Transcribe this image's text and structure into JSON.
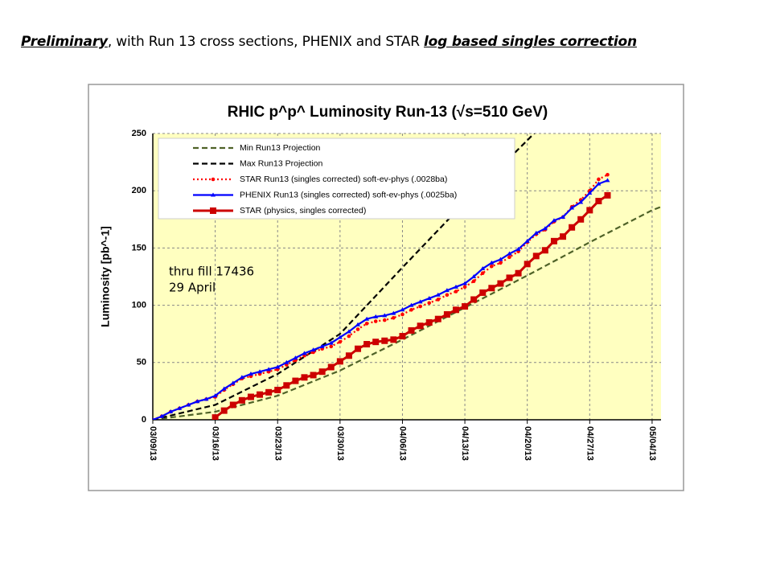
{
  "slide_title": [
    {
      "text": "Preliminary",
      "style": "emph"
    },
    {
      "text": ", with Run 13 cross sections, PHENIX and STAR ",
      "style": "plain"
    },
    {
      "text": "log based singles correction",
      "style": "emph"
    }
  ],
  "chart_data": {
    "type": "line",
    "title": "RHIC  p^p^ Luminosity Run-13 (√s=510 GeV)",
    "ylabel": "Luminosity  [pb^-1]",
    "annotation": [
      "thru fill 17436",
      "29 April"
    ],
    "xlim": [
      "2013-03-09",
      "2013-05-05"
    ],
    "ylim": [
      0,
      250
    ],
    "yticks": [
      0,
      50,
      100,
      150,
      200,
      250
    ],
    "xticks": [
      {
        "value": "2013-03-09",
        "label": "03/09/13"
      },
      {
        "value": "2013-03-16",
        "label": "03/16/13"
      },
      {
        "value": "2013-03-23",
        "label": "03/23/13"
      },
      {
        "value": "2013-03-30",
        "label": "03/30/13"
      },
      {
        "value": "2013-04-06",
        "label": "04/06/13"
      },
      {
        "value": "2013-04-13",
        "label": "04/13/13"
      },
      {
        "value": "2013-04-20",
        "label": "04/20/13"
      },
      {
        "value": "2013-04-27",
        "label": "04/27/13"
      },
      {
        "value": "2013-05-04",
        "label": "05/04/13"
      }
    ],
    "grid": true,
    "x": [
      "2013-03-09",
      "2013-03-10",
      "2013-03-11",
      "2013-03-12",
      "2013-03-13",
      "2013-03-14",
      "2013-03-15",
      "2013-03-16",
      "2013-03-17",
      "2013-03-18",
      "2013-03-19",
      "2013-03-20",
      "2013-03-21",
      "2013-03-22",
      "2013-03-23",
      "2013-03-24",
      "2013-03-25",
      "2013-03-26",
      "2013-03-27",
      "2013-03-28",
      "2013-03-29",
      "2013-03-30",
      "2013-03-31",
      "2013-04-01",
      "2013-04-02",
      "2013-04-03",
      "2013-04-04",
      "2013-04-05",
      "2013-04-06",
      "2013-04-07",
      "2013-04-08",
      "2013-04-09",
      "2013-04-10",
      "2013-04-11",
      "2013-04-12",
      "2013-04-13",
      "2013-04-14",
      "2013-04-15",
      "2013-04-16",
      "2013-04-17",
      "2013-04-18",
      "2013-04-19",
      "2013-04-20",
      "2013-04-21",
      "2013-04-22",
      "2013-04-23",
      "2013-04-24",
      "2013-04-25",
      "2013-04-26",
      "2013-04-27",
      "2013-04-28",
      "2013-04-29"
    ],
    "series": [
      {
        "name": "Min Run13 Projection",
        "color": "#4f6228",
        "dash": true,
        "marker": "none",
        "x": [
          "2013-03-09",
          "2013-03-16",
          "2013-03-23",
          "2013-03-30",
          "2013-04-06",
          "2013-04-13",
          "2013-04-20",
          "2013-04-27",
          "2013-05-04",
          "2013-05-05"
        ],
        "values": [
          0,
          7,
          21,
          43,
          70,
          98,
          126,
          155,
          183,
          186
        ]
      },
      {
        "name": "Max Run13 Projection",
        "color": "#000000",
        "dash": true,
        "marker": "none",
        "x": [
          "2013-03-09",
          "2013-03-16",
          "2013-03-23",
          "2013-03-30",
          "2013-04-06",
          "2013-04-13",
          "2013-04-20",
          "2013-04-21"
        ],
        "values": [
          0,
          13,
          40,
          75,
          133,
          190,
          244,
          252
        ]
      },
      {
        "name": "STAR Run13 (singles corrected) soft-ev-phys (.0028ba)",
        "color": "#ff0000",
        "dash": "dot",
        "marker": "circle",
        "values": [
          0,
          3,
          7,
          10,
          13,
          16,
          18,
          20,
          26,
          31,
          36,
          38,
          40,
          42,
          44,
          48,
          52,
          56,
          59,
          62,
          64,
          68,
          73,
          79,
          84,
          86,
          87,
          89,
          92,
          96,
          99,
          102,
          105,
          109,
          112,
          116,
          121,
          128,
          134,
          137,
          142,
          147,
          155,
          162,
          166,
          173,
          177,
          186,
          192,
          200,
          210,
          214
        ]
      },
      {
        "name": "PHENIX Run13 (singles corrected) soft-ev-phys (.0025ba)",
        "color": "#0000ff",
        "dash": false,
        "marker": "triangle",
        "values": [
          0,
          3,
          7,
          10,
          13,
          16,
          18,
          21,
          27,
          32,
          37,
          40,
          42,
          44,
          46,
          50,
          54,
          58,
          61,
          64,
          67,
          72,
          77,
          83,
          88,
          90,
          91,
          93,
          96,
          100,
          103,
          106,
          109,
          113,
          116,
          119,
          125,
          132,
          137,
          140,
          145,
          149,
          156,
          163,
          167,
          174,
          177,
          185,
          190,
          198,
          206,
          209
        ]
      },
      {
        "name": "STAR (physics, singles corrected)",
        "color": "#cc0000",
        "dash": false,
        "marker": "square",
        "values": [
          null,
          null,
          null,
          null,
          null,
          null,
          null,
          2,
          8,
          13,
          17,
          20,
          22,
          24,
          26,
          30,
          34,
          37,
          39,
          42,
          46,
          51,
          56,
          62,
          66,
          68,
          69,
          70,
          73,
          78,
          82,
          85,
          88,
          92,
          96,
          99,
          105,
          111,
          115,
          119,
          124,
          128,
          136,
          143,
          148,
          156,
          160,
          168,
          175,
          183,
          191,
          196
        ]
      }
    ]
  }
}
